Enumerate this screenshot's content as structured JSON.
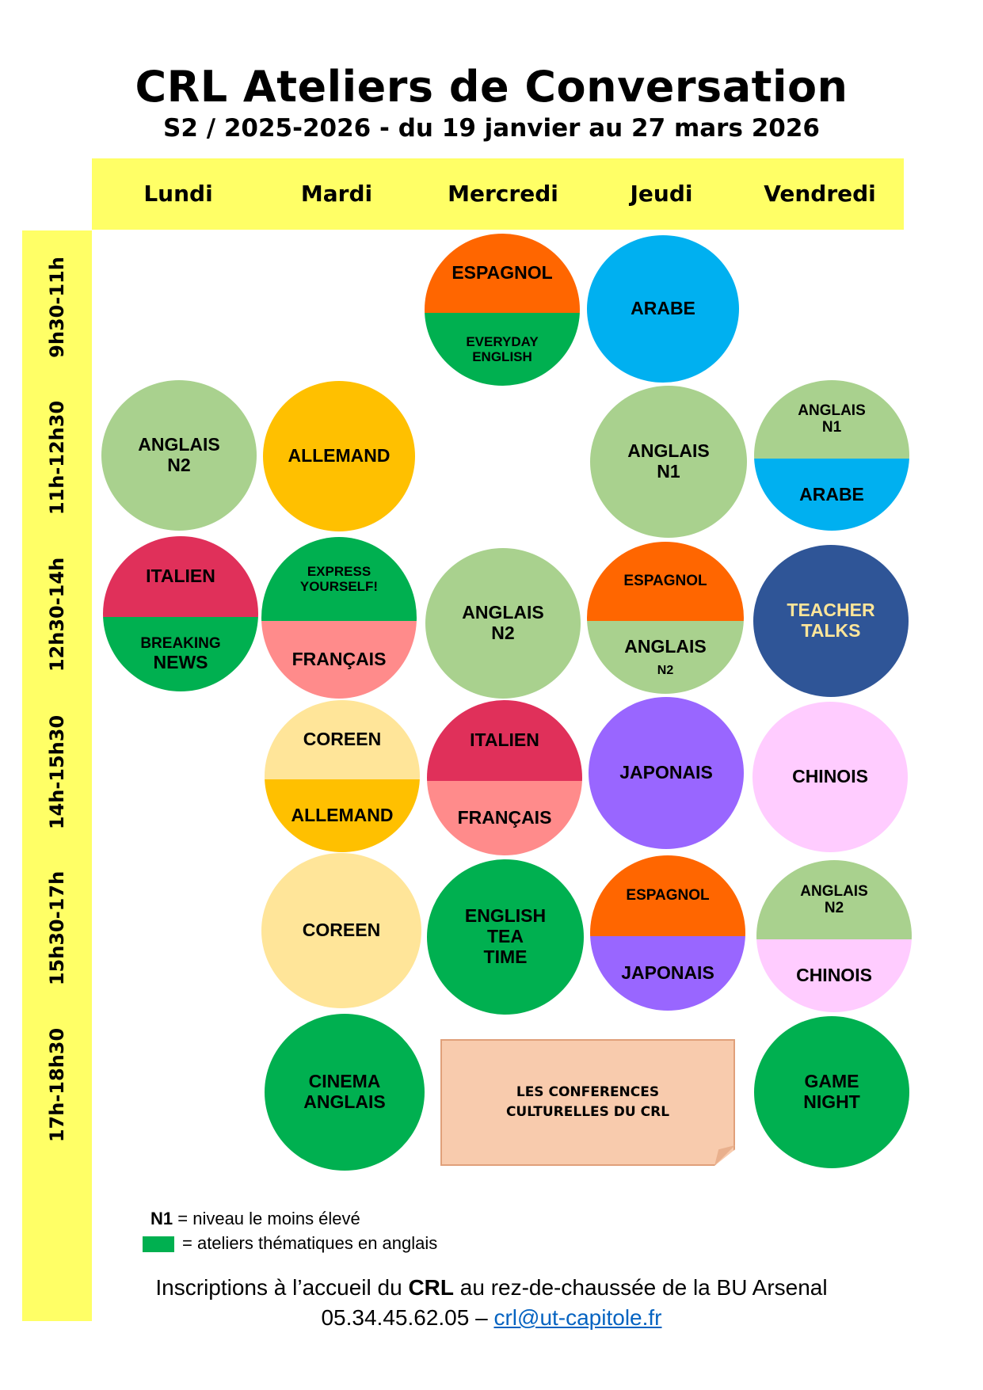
{
  "header": {
    "title": "CRL Ateliers de Conversation",
    "subtitle": "S2 / 2025-2026 - du 19 janvier au 27 mars 2026"
  },
  "days": [
    "Lundi",
    "Mardi",
    "Mercredi",
    "Jeudi",
    "Vendredi"
  ],
  "time_slots": [
    "9h30-11h",
    "11h-12h30",
    "12h30-14h",
    "14h-15h30",
    "15h30-17h",
    "17h-18h30"
  ],
  "colors": {
    "band": "#ffff66",
    "anglais": "#a9d18e",
    "espagnol": "#ff6600",
    "thematique_green": "#00b050",
    "arabe": "#00b0f0",
    "allemand": "#ffc000",
    "italien": "#e0305a",
    "francais": "#ff8b8b",
    "coreen": "#ffe599",
    "japonais": "#9966ff",
    "chinois": "#ffccff",
    "teacher_talks": "#2f5597",
    "teacher_talks_text": "#ffe699",
    "conferences": "#f8cbad"
  },
  "sessions": {
    "wed_0930": {
      "top": [
        "ESPAGNOL"
      ],
      "bottom": [
        "EVERYDAY",
        "ENGLISH"
      ]
    },
    "thu_0930": {
      "full": [
        "ARABE"
      ]
    },
    "mon_1100": {
      "full": [
        "ANGLAIS",
        "N2"
      ]
    },
    "tue_1100": {
      "full": [
        "ALLEMAND"
      ]
    },
    "thu_1100": {
      "full": [
        "ANGLAIS",
        "N1"
      ]
    },
    "fri_1100": {
      "top": [
        "ANGLAIS",
        "N1"
      ],
      "bottom": [
        "ARABE"
      ]
    },
    "mon_1230": {
      "top": [
        "ITALIEN"
      ],
      "bottom": [
        "BREAKING",
        "NEWS"
      ]
    },
    "tue_1230": {
      "top": [
        "EXPRESS",
        "YOURSELF!"
      ],
      "bottom": [
        "FRANÇAIS"
      ]
    },
    "wed_1230": {
      "full": [
        "ANGLAIS",
        "N2"
      ]
    },
    "thu_1230": {
      "top": [
        "ESPAGNOL"
      ],
      "bottom": [
        "ANGLAIS",
        "N2"
      ]
    },
    "fri_1230": {
      "full": [
        "TEACHER",
        "TALKS"
      ]
    },
    "tue_1400": {
      "top": [
        "COREEN"
      ],
      "bottom": [
        "ALLEMAND"
      ]
    },
    "wed_1400": {
      "top": [
        "ITALIEN"
      ],
      "bottom": [
        "FRANÇAIS"
      ]
    },
    "thu_1400": {
      "full": [
        "JAPONAIS"
      ]
    },
    "fri_1400": {
      "full": [
        "CHINOIS"
      ]
    },
    "tue_1530": {
      "full": [
        "COREEN"
      ]
    },
    "wed_1530": {
      "full": [
        "ENGLISH",
        "TEA",
        "TIME"
      ]
    },
    "thu_1530": {
      "top": [
        "ESPAGNOL"
      ],
      "bottom": [
        "JAPONAIS"
      ]
    },
    "fri_1530": {
      "top": [
        "ANGLAIS",
        "N2"
      ],
      "bottom": [
        "CHINOIS"
      ]
    },
    "tue_1700": {
      "full": [
        "CINEMA",
        "ANGLAIS"
      ]
    },
    "fri_1700": {
      "full": [
        "GAME",
        "NIGHT"
      ]
    }
  },
  "conferences": [
    "LES CONFERENCES",
    "CULTURELLES DU CRL"
  ],
  "legend": {
    "n1_key": "N1",
    "n1_text": "= niveau le moins élevé",
    "green_text": "= ateliers thématiques en anglais"
  },
  "footer": {
    "line1_before": "Inscriptions à l’accueil du ",
    "line1_bold": "CRL",
    "line1_after": " au rez-de-chaussée de la BU Arsenal",
    "phone": "05.34.45.62.05 – ",
    "email": "crl@ut-capitole.fr"
  }
}
